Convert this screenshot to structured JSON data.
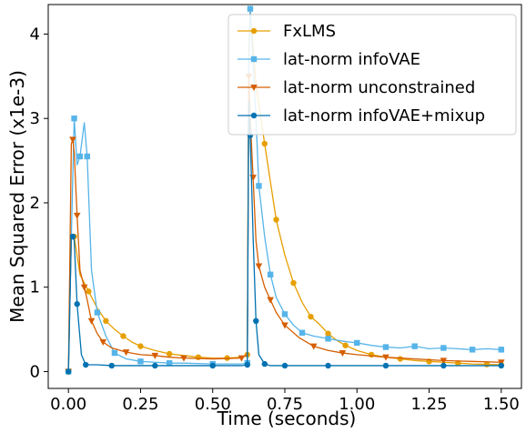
{
  "chart_data": {
    "type": "line",
    "xlabel": "Time (seconds)",
    "ylabel": "Mean Squared Error (x1e-3)",
    "xlim": [
      -0.07,
      1.57
    ],
    "ylim": [
      -0.2,
      4.35
    ],
    "x_ticks": [
      0.0,
      0.25,
      0.5,
      0.75,
      1.0,
      1.25,
      1.5
    ],
    "x_tick_labels": [
      "0.00",
      "0.25",
      "0.50",
      "0.75",
      "1.00",
      "1.25",
      "1.50"
    ],
    "y_ticks": [
      0,
      1,
      2,
      3,
      4
    ],
    "y_tick_labels": [
      "0",
      "1",
      "2",
      "3",
      "4"
    ],
    "legend_position": "top-right",
    "grid": false,
    "series": [
      {
        "name": "FxLMS",
        "color": "#E69F00",
        "marker": "circle",
        "x": [
          0.0,
          0.01,
          0.02,
          0.04,
          0.07,
          0.1,
          0.13,
          0.16,
          0.19,
          0.22,
          0.25,
          0.3,
          0.35,
          0.4,
          0.45,
          0.5,
          0.55,
          0.6,
          0.62,
          0.625,
          0.63,
          0.65,
          0.68,
          0.7,
          0.72,
          0.75,
          0.78,
          0.81,
          0.84,
          0.87,
          0.9,
          0.93,
          0.96,
          1.0,
          1.05,
          1.1,
          1.15,
          1.2,
          1.25,
          1.3,
          1.35,
          1.4,
          1.45,
          1.5
        ],
        "y": [
          0.0,
          1.6,
          1.6,
          1.15,
          0.95,
          0.75,
          0.6,
          0.5,
          0.42,
          0.35,
          0.3,
          0.25,
          0.21,
          0.19,
          0.17,
          0.16,
          0.16,
          0.17,
          0.2,
          3.8,
          4.3,
          3.4,
          2.7,
          2.25,
          1.8,
          1.38,
          1.05,
          0.82,
          0.65,
          0.56,
          0.45,
          0.37,
          0.31,
          0.25,
          0.2,
          0.17,
          0.15,
          0.13,
          0.12,
          0.11,
          0.1,
          0.09,
          0.085,
          0.08
        ]
      },
      {
        "name": "lat-norm infoVAE",
        "color": "#56B4E9",
        "marker": "square",
        "x": [
          0.0,
          0.01,
          0.02,
          0.03,
          0.04,
          0.055,
          0.065,
          0.08,
          0.1,
          0.13,
          0.16,
          0.2,
          0.25,
          0.3,
          0.35,
          0.4,
          0.5,
          0.6,
          0.62,
          0.625,
          0.63,
          0.65,
          0.66,
          0.68,
          0.7,
          0.72,
          0.75,
          0.78,
          0.81,
          0.85,
          0.9,
          0.95,
          1.0,
          1.05,
          1.1,
          1.15,
          1.2,
          1.25,
          1.3,
          1.35,
          1.4,
          1.45,
          1.5
        ],
        "y": [
          0.0,
          1.6,
          3.0,
          2.45,
          2.55,
          2.95,
          2.55,
          1.2,
          0.7,
          0.42,
          0.22,
          0.15,
          0.12,
          0.11,
          0.1,
          0.1,
          0.09,
          0.09,
          0.1,
          3.5,
          4.3,
          3.0,
          2.2,
          1.6,
          1.15,
          0.88,
          0.68,
          0.55,
          0.46,
          0.42,
          0.39,
          0.36,
          0.34,
          0.31,
          0.29,
          0.28,
          0.3,
          0.27,
          0.28,
          0.27,
          0.26,
          0.27,
          0.26
        ]
      },
      {
        "name": "lat-norm unconstrained",
        "color": "#D55E00",
        "marker": "triangle-down",
        "x": [
          0.0,
          0.01,
          0.015,
          0.02,
          0.03,
          0.04,
          0.055,
          0.065,
          0.08,
          0.1,
          0.12,
          0.15,
          0.2,
          0.25,
          0.3,
          0.35,
          0.4,
          0.5,
          0.6,
          0.62,
          0.625,
          0.63,
          0.64,
          0.65,
          0.66,
          0.68,
          0.7,
          0.72,
          0.75,
          0.8,
          0.85,
          0.9,
          0.95,
          1.0,
          1.1,
          1.2,
          1.3,
          1.4,
          1.5
        ],
        "y": [
          0.0,
          2.7,
          2.75,
          2.6,
          1.85,
          1.2,
          1.0,
          0.85,
          0.6,
          0.45,
          0.35,
          0.28,
          0.23,
          0.2,
          0.19,
          0.17,
          0.16,
          0.15,
          0.16,
          0.2,
          3.5,
          3.0,
          2.3,
          1.55,
          1.25,
          1.0,
          0.85,
          0.7,
          0.55,
          0.4,
          0.3,
          0.25,
          0.22,
          0.2,
          0.17,
          0.15,
          0.13,
          0.12,
          0.11
        ]
      },
      {
        "name": "lat-norm infoVAE+mixup",
        "color": "#0072B2",
        "marker": "circle",
        "x": [
          0.0,
          0.01,
          0.015,
          0.02,
          0.03,
          0.045,
          0.06,
          0.1,
          0.15,
          0.2,
          0.3,
          0.4,
          0.5,
          0.6,
          0.62,
          0.625,
          0.63,
          0.64,
          0.65,
          0.66,
          0.68,
          0.7,
          0.75,
          0.8,
          0.9,
          1.0,
          1.1,
          1.2,
          1.3,
          1.4,
          1.5
        ],
        "y": [
          0.0,
          1.6,
          1.6,
          1.55,
          0.8,
          0.2,
          0.08,
          0.08,
          0.07,
          0.07,
          0.07,
          0.07,
          0.07,
          0.07,
          0.08,
          3.2,
          2.8,
          1.6,
          0.6,
          0.2,
          0.09,
          0.07,
          0.07,
          0.07,
          0.07,
          0.07,
          0.07,
          0.07,
          0.07,
          0.07,
          0.07
        ]
      }
    ]
  }
}
